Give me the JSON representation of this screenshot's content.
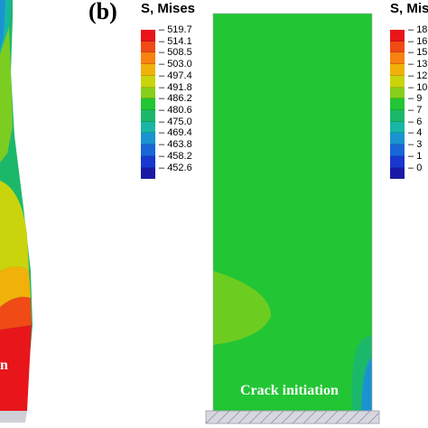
{
  "panel_b": {
    "label": "(b)",
    "legend": {
      "title": "S, Mises",
      "ticks": [
        "519.7",
        "514.1",
        "508.5",
        "503.0",
        "497.4",
        "491.8",
        "486.2",
        "480.6",
        "475.0",
        "469.4",
        "463.8",
        "458.2",
        "452.6"
      ],
      "colors": [
        "#e8161b",
        "#f04a16",
        "#f7820f",
        "#f0b20a",
        "#c9d40c",
        "#86cf1a",
        "#22c534",
        "#1cb86a",
        "#19b6a7",
        "#1a94d0",
        "#1966d8",
        "#1838cf",
        "#1a1aa6"
      ]
    },
    "annotation": "Crack initiation"
  },
  "panel_c_partial": {
    "legend": {
      "title": "S, Mises",
      "ticks": [
        "18",
        "16",
        "15",
        "13",
        "12",
        "10",
        "9",
        "7",
        "6",
        "4",
        "3",
        "1",
        "0"
      ],
      "colors": [
        "#e8161b",
        "#f04a16",
        "#f7820f",
        "#f0b20a",
        "#c9d40c",
        "#86cf1a",
        "#22c534",
        "#1cb86a",
        "#19b6a7",
        "#1a94d0",
        "#1966d8",
        "#1838cf",
        "#1a1aa6"
      ]
    }
  },
  "panel_a_partial": {
    "annotation": "n"
  }
}
